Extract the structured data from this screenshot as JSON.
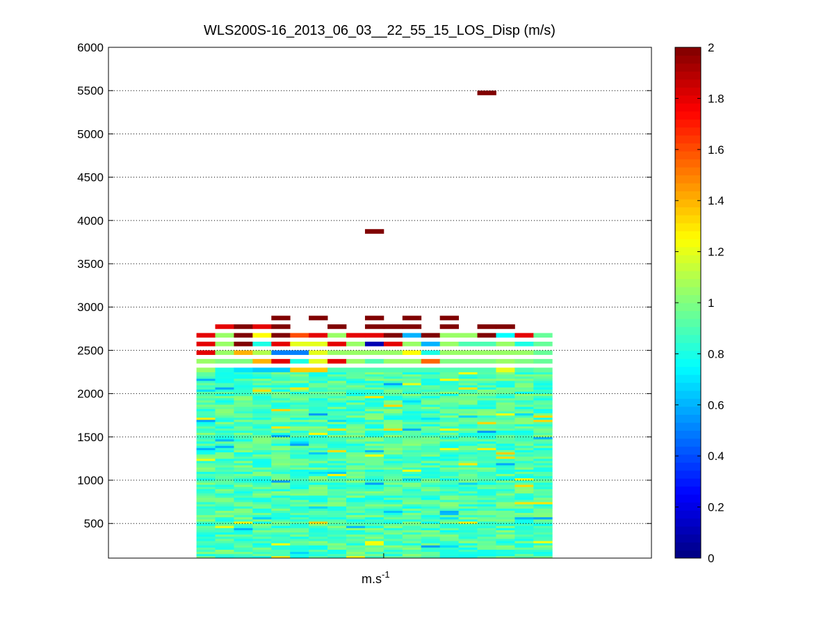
{
  "chart_data": {
    "type": "heatmap",
    "title": "WLS200S-16_2013_06_03__22_55_15_LOS_Disp (m/s)",
    "xlabel_base": "m.s",
    "xlabel_exp": "-1",
    "ylabel": "",
    "ylim": [
      100,
      6000
    ],
    "yticks": [
      500,
      1000,
      1500,
      2000,
      2500,
      3000,
      3500,
      4000,
      4500,
      5000,
      5500,
      6000
    ],
    "ygrid": "dotted",
    "colorbar": {
      "colormap": "jet",
      "range": [
        0,
        2
      ],
      "ticks": [
        0,
        0.2,
        0.4,
        0.6,
        0.8,
        1,
        1.2,
        1.4,
        1.6,
        1.8,
        2
      ],
      "tick_labels": [
        "0",
        "0.2",
        "0.4",
        "0.6",
        "0.8",
        "1",
        "1.2",
        "1.4",
        "1.6",
        "1.8",
        "2"
      ]
    },
    "columns": 19,
    "column_range": [
      1,
      19
    ],
    "xlim": [
      -4.2,
      24.8
    ],
    "altitude_step": 50,
    "altitude_min": 100,
    "altitude_max": 2700,
    "upper_cells": [
      {
        "col": 2,
        "alt": 2750,
        "v": 1.8
      },
      {
        "col": 3,
        "alt": 2750,
        "v": 2.0
      },
      {
        "col": 4,
        "alt": 2750,
        "v": 1.8
      },
      {
        "col": 5,
        "alt": 2750,
        "v": 2.0
      },
      {
        "col": 5,
        "alt": 2850,
        "v": 2.0
      },
      {
        "col": 7,
        "alt": 2850,
        "v": 2.0
      },
      {
        "col": 8,
        "alt": 2750,
        "v": 2.0
      },
      {
        "col": 10,
        "alt": 2750,
        "v": 2.0
      },
      {
        "col": 10,
        "alt": 2850,
        "v": 2.0
      },
      {
        "col": 11,
        "alt": 2750,
        "v": 2.0
      },
      {
        "col": 12,
        "alt": 2750,
        "v": 2.0
      },
      {
        "col": 12,
        "alt": 2850,
        "v": 2.0
      },
      {
        "col": 14,
        "alt": 2750,
        "v": 2.0
      },
      {
        "col": 14,
        "alt": 2850,
        "v": 2.0
      },
      {
        "col": 16,
        "alt": 2750,
        "v": 2.0
      },
      {
        "col": 17,
        "alt": 2750,
        "v": 2.0
      },
      {
        "col": 10,
        "alt": 3850,
        "v": 2.0
      },
      {
        "col": 16,
        "alt": 5450,
        "v": 2.0
      }
    ],
    "top_band": [
      {
        "col": 1,
        "alt": 2650,
        "v": 1.8
      },
      {
        "col": 2,
        "alt": 2650,
        "v": 1.05
      },
      {
        "col": 3,
        "alt": 2650,
        "v": 2.0
      },
      {
        "col": 4,
        "alt": 2650,
        "v": 1.25
      },
      {
        "col": 5,
        "alt": 2650,
        "v": 2.0
      },
      {
        "col": 6,
        "alt": 2650,
        "v": 1.6
      },
      {
        "col": 7,
        "alt": 2650,
        "v": 1.8
      },
      {
        "col": 8,
        "alt": 2650,
        "v": 1.05
      },
      {
        "col": 9,
        "alt": 2650,
        "v": 1.8
      },
      {
        "col": 10,
        "alt": 2650,
        "v": 1.8
      },
      {
        "col": 11,
        "alt": 2650,
        "v": 2.0
      },
      {
        "col": 12,
        "alt": 2650,
        "v": 0.6
      },
      {
        "col": 13,
        "alt": 2650,
        "v": 2.0
      },
      {
        "col": 14,
        "alt": 2650,
        "v": 1.05
      },
      {
        "col": 15,
        "alt": 2650,
        "v": 1.05
      },
      {
        "col": 16,
        "alt": 2650,
        "v": 2.0
      },
      {
        "col": 17,
        "alt": 2650,
        "v": 0.75
      },
      {
        "col": 18,
        "alt": 2650,
        "v": 1.8
      },
      {
        "col": 1,
        "alt": 2550,
        "v": 1.8
      },
      {
        "col": 2,
        "alt": 2550,
        "v": 1.05
      },
      {
        "col": 3,
        "alt": 2550,
        "v": 2.0
      },
      {
        "col": 4,
        "alt": 2550,
        "v": 0.8
      },
      {
        "col": 5,
        "alt": 2550,
        "v": 1.8
      },
      {
        "col": 6,
        "alt": 2550,
        "v": 1.2
      },
      {
        "col": 7,
        "alt": 2550,
        "v": 1.2
      },
      {
        "col": 8,
        "alt": 2550,
        "v": 1.8
      },
      {
        "col": 9,
        "alt": 2550,
        "v": 1.05
      },
      {
        "col": 10,
        "alt": 2550,
        "v": 0.1
      },
      {
        "col": 11,
        "alt": 2550,
        "v": 1.8
      },
      {
        "col": 12,
        "alt": 2550,
        "v": 1.05
      },
      {
        "col": 13,
        "alt": 2550,
        "v": 0.6
      },
      {
        "col": 14,
        "alt": 2550,
        "v": 1.05
      },
      {
        "col": 15,
        "alt": 2550,
        "v": 0.9
      },
      {
        "col": 16,
        "alt": 2550,
        "v": 0.9
      },
      {
        "col": 17,
        "alt": 2550,
        "v": 1.05
      },
      {
        "col": 18,
        "alt": 2550,
        "v": 0.8
      },
      {
        "col": 1,
        "alt": 2450,
        "v": 1.8
      },
      {
        "col": 2,
        "alt": 2450,
        "v": 1.05
      },
      {
        "col": 3,
        "alt": 2450,
        "v": 1.4
      },
      {
        "col": 4,
        "alt": 2450,
        "v": 1.1
      },
      {
        "col": 5,
        "alt": 2450,
        "v": 0.5
      },
      {
        "col": 6,
        "alt": 2450,
        "v": 0.5
      },
      {
        "col": 7,
        "alt": 2450,
        "v": 1.2
      },
      {
        "col": 8,
        "alt": 2450,
        "v": 1.05
      },
      {
        "col": 9,
        "alt": 2450,
        "v": 1.05
      },
      {
        "col": 10,
        "alt": 2450,
        "v": 1.05
      },
      {
        "col": 11,
        "alt": 2450,
        "v": 1.05
      },
      {
        "col": 12,
        "alt": 2450,
        "v": 1.25
      },
      {
        "col": 13,
        "alt": 2450,
        "v": 0.8
      },
      {
        "col": 14,
        "alt": 2450,
        "v": 1.05
      },
      {
        "col": 15,
        "alt": 2450,
        "v": 1.05
      },
      {
        "col": 16,
        "alt": 2450,
        "v": 1.05
      },
      {
        "col": 17,
        "alt": 2450,
        "v": 1.05
      },
      {
        "col": 18,
        "alt": 2450,
        "v": 1.05
      },
      {
        "col": 1,
        "alt": 2350,
        "v": 1.05
      },
      {
        "col": 2,
        "alt": 2350,
        "v": 1.0
      },
      {
        "col": 3,
        "alt": 2350,
        "v": 1.0
      },
      {
        "col": 4,
        "alt": 2350,
        "v": 1.4
      },
      {
        "col": 5,
        "alt": 2350,
        "v": 1.8
      },
      {
        "col": 6,
        "alt": 2350,
        "v": 0.8
      },
      {
        "col": 7,
        "alt": 2350,
        "v": 1.2
      },
      {
        "col": 8,
        "alt": 2350,
        "v": 1.8
      },
      {
        "col": 9,
        "alt": 2350,
        "v": 1.05
      },
      {
        "col": 10,
        "alt": 2350,
        "v": 0.9
      },
      {
        "col": 11,
        "alt": 2350,
        "v": 1.05
      },
      {
        "col": 12,
        "alt": 2350,
        "v": 1.05
      },
      {
        "col": 13,
        "alt": 2350,
        "v": 1.55
      },
      {
        "col": 14,
        "alt": 2350,
        "v": 1.0
      },
      {
        "col": 15,
        "alt": 2350,
        "v": 1.0
      },
      {
        "col": 16,
        "alt": 2350,
        "v": 1.0
      },
      {
        "col": 17,
        "alt": 2350,
        "v": 1.05
      },
      {
        "col": 18,
        "alt": 2350,
        "v": 1.0
      },
      {
        "col": 1,
        "alt": 2250,
        "v": 1.05
      },
      {
        "col": 2,
        "alt": 2250,
        "v": 0.8
      },
      {
        "col": 3,
        "alt": 2250,
        "v": 0.7
      },
      {
        "col": 4,
        "alt": 2250,
        "v": 0.65
      },
      {
        "col": 5,
        "alt": 2250,
        "v": 0.65
      },
      {
        "col": 6,
        "alt": 2250,
        "v": 1.35
      },
      {
        "col": 7,
        "alt": 2250,
        "v": 1.35
      },
      {
        "col": 8,
        "alt": 2250,
        "v": 0.9
      },
      {
        "col": 9,
        "alt": 2250,
        "v": 0.9
      },
      {
        "col": 10,
        "alt": 2250,
        "v": 0.9
      },
      {
        "col": 11,
        "alt": 2250,
        "v": 0.9
      },
      {
        "col": 12,
        "alt": 2250,
        "v": 0.9
      },
      {
        "col": 13,
        "alt": 2250,
        "v": 0.9
      },
      {
        "col": 14,
        "alt": 2250,
        "v": 0.9
      },
      {
        "col": 15,
        "alt": 2250,
        "v": 0.9
      },
      {
        "col": 16,
        "alt": 2250,
        "v": 0.9
      },
      {
        "col": 17,
        "alt": 2250,
        "v": 1.2
      },
      {
        "col": 18,
        "alt": 2250,
        "v": 0.9
      }
    ],
    "base_value": 0.9,
    "variation": 0.13
  }
}
